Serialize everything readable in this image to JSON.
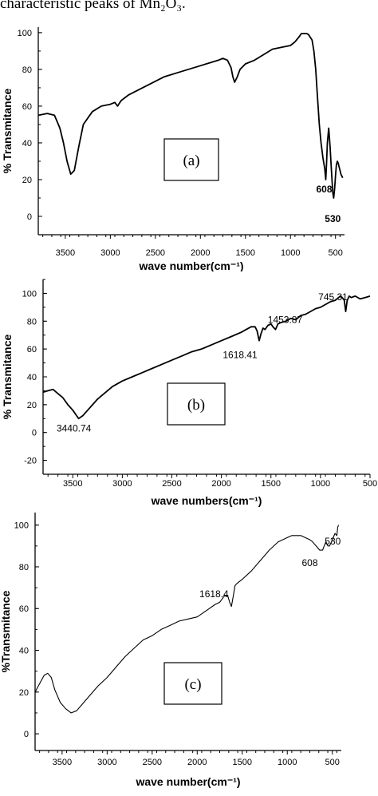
{
  "caption": "characteristic peaks of Mn₂O₃.",
  "chart_data": [
    {
      "type": "line",
      "panel_label": "(a)",
      "xlabel": "wave number(cm⁻¹)",
      "ylabel": "% Transmitance",
      "xlim": [
        3800,
        400
      ],
      "ylim": [
        -10,
        103
      ],
      "xticks": [
        3500,
        3000,
        2500,
        2000,
        1500,
        1000,
        500
      ],
      "yticks": [
        0,
        20,
        40,
        60,
        80,
        100
      ],
      "annotations": [
        {
          "text": "608",
          "x": 608,
          "y": 20
        },
        {
          "text": "530",
          "x": 530,
          "y": 10
        }
      ],
      "series": [
        {
          "x": [
            3800,
            3700,
            3620,
            3560,
            3520,
            3480,
            3440,
            3400,
            3350,
            3300,
            3200,
            3100,
            3000,
            2950,
            2920,
            2880,
            2800,
            2600,
            2400,
            2200,
            2000,
            1800,
            1750,
            1700,
            1660,
            1640,
            1620,
            1590,
            1560,
            1500,
            1400,
            1300,
            1200,
            1100,
            1000,
            950,
            900,
            880,
            850,
            820,
            800,
            760,
            740,
            720,
            700,
            680,
            660,
            640,
            620,
            608,
            600,
            590,
            575,
            560,
            545,
            530,
            520,
            510,
            500,
            490,
            480,
            470,
            460,
            450,
            440,
            430,
            420
          ],
          "values": [
            55,
            56,
            55,
            48,
            40,
            30,
            23,
            25,
            38,
            50,
            57,
            60,
            61,
            62,
            60,
            63,
            66,
            71,
            76,
            79,
            82,
            85,
            86,
            85,
            81,
            76,
            73,
            76,
            80,
            83,
            85,
            88,
            91,
            92,
            93,
            95,
            98,
            99.5,
            99.5,
            99.5,
            99,
            96,
            90,
            80,
            65,
            50,
            40,
            32,
            26,
            20,
            28,
            40,
            48,
            38,
            25,
            13,
            10,
            15,
            22,
            28,
            30,
            29,
            27,
            25,
            23,
            22,
            21
          ]
        }
      ]
    },
    {
      "type": "line",
      "panel_label": "(b)",
      "xlabel": "wave numbers(cm⁻¹)",
      "ylabel": "% Transmitance",
      "xlim": [
        3800,
        500
      ],
      "ylim": [
        -30,
        110
      ],
      "xticks": [
        3500,
        3000,
        2500,
        2000,
        1500,
        1000,
        500
      ],
      "yticks": [
        -20,
        0,
        20,
        40,
        60,
        80,
        100
      ],
      "annotations": [
        {
          "text": "3440.74",
          "x": 3440.74,
          "y": 10
        },
        {
          "text": "1618.41",
          "x": 1618.41,
          "y": 65
        },
        {
          "text": "1453.87",
          "x": 1453.87,
          "y": 74
        },
        {
          "text": "745.31",
          "x": 745.31,
          "y": 87
        }
      ],
      "series": [
        {
          "x": [
            3800,
            3750,
            3700,
            3650,
            3600,
            3550,
            3500,
            3470,
            3440.74,
            3400,
            3350,
            3300,
            3250,
            3200,
            3100,
            3000,
            2900,
            2800,
            2700,
            2600,
            2500,
            2400,
            2300,
            2200,
            2100,
            2000,
            1900,
            1800,
            1750,
            1700,
            1660,
            1640,
            1618.41,
            1600,
            1580,
            1560,
            1530,
            1500,
            1480,
            1453.87,
            1430,
            1400,
            1350,
            1300,
            1250,
            1200,
            1150,
            1100,
            1050,
            1000,
            950,
            900,
            850,
            800,
            780,
            760,
            745.31,
            730,
            710,
            690,
            650,
            600,
            550,
            500
          ],
          "values": [
            29,
            30,
            31,
            28,
            25,
            20,
            16,
            13,
            10,
            12,
            16,
            20,
            24,
            27,
            33,
            37,
            40,
            43,
            46,
            49,
            52,
            55,
            58,
            60,
            63,
            66,
            69,
            72,
            74,
            76,
            76,
            73,
            66,
            71,
            75,
            74,
            77,
            78,
            76,
            74,
            78,
            79,
            80,
            82,
            81,
            84,
            85,
            87,
            89,
            90,
            92,
            94,
            95,
            98,
            97,
            95,
            87,
            95,
            98,
            97,
            98,
            96,
            97,
            98
          ]
        }
      ]
    },
    {
      "type": "line",
      "panel_label": "(c)",
      "xlabel": "wave number(cm⁻¹)",
      "ylabel": "%Transmitance",
      "xlim": [
        3800,
        400
      ],
      "ylim": [
        -8,
        106
      ],
      "xticks": [
        3500,
        3000,
        2500,
        2000,
        1500,
        1000,
        500
      ],
      "yticks": [
        0,
        20,
        40,
        60,
        80,
        100
      ],
      "annotations": [
        {
          "text": "1618.4",
          "x": 1618.4,
          "y": 60
        },
        {
          "text": "608",
          "x": 608,
          "y": 88
        },
        {
          "text": "530",
          "x": 530,
          "y": 90
        }
      ],
      "series": [
        {
          "x": [
            3800,
            3750,
            3700,
            3660,
            3620,
            3580,
            3520,
            3460,
            3400,
            3340,
            3300,
            3200,
            3100,
            3000,
            2900,
            2800,
            2700,
            2600,
            2500,
            2400,
            2300,
            2200,
            2100,
            2000,
            1900,
            1800,
            1750,
            1700,
            1660,
            1640,
            1620,
            1600,
            1580,
            1560,
            1500,
            1400,
            1300,
            1200,
            1100,
            1000,
            950,
            900,
            850,
            800,
            750,
            720,
            700,
            680,
            660,
            640,
            620,
            608,
            590,
            570,
            550,
            530,
            510,
            490,
            470,
            450,
            440,
            430
          ],
          "values": [
            20,
            24,
            28,
            29,
            27,
            21,
            15,
            12,
            10,
            11,
            13,
            18,
            23,
            27,
            32,
            37,
            41,
            45,
            47,
            50,
            52,
            54,
            55,
            56,
            59,
            62,
            63,
            66,
            66,
            63,
            61,
            66,
            71,
            72,
            74,
            78,
            83,
            88,
            92,
            94,
            95,
            95,
            95,
            94,
            93,
            92,
            91,
            90,
            89,
            88,
            88,
            88,
            90,
            92,
            90,
            90,
            92,
            94,
            96,
            95,
            99,
            100
          ]
        }
      ]
    }
  ]
}
